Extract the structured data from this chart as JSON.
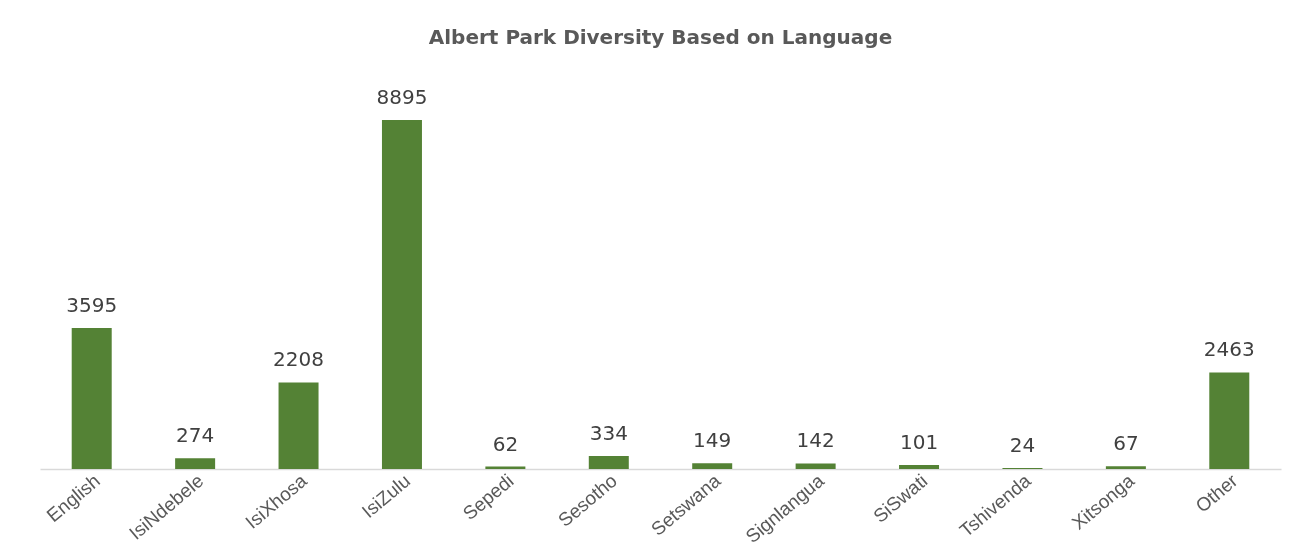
{
  "chart_data": {
    "type": "bar",
    "title": "Albert Park Diversity Based on Language",
    "categories": [
      "English",
      "IsiNdebele",
      "IsiXhosa",
      "IsiZulu",
      "Sepedi",
      "Sesotho",
      "Setswana",
      "Signlangua",
      "SiSwati",
      "Tshivenda",
      "Xitsonga",
      "Other"
    ],
    "values": [
      3595,
      274,
      2208,
      8895,
      62,
      334,
      149,
      142,
      101,
      24,
      67,
      2463
    ],
    "color": "#548235",
    "data_labels": true,
    "grid": false
  }
}
